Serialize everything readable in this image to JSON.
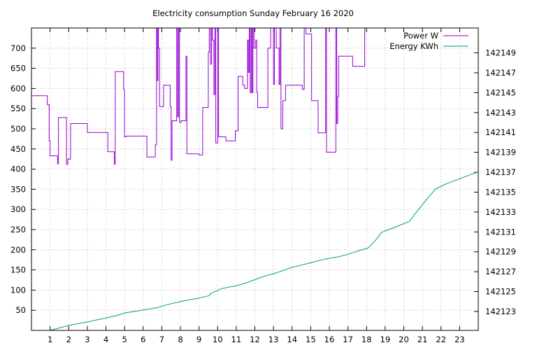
{
  "chart_data": {
    "type": "line",
    "title": "Electricity consumption Sunday February 16 2020",
    "x": {
      "range": [
        0,
        24
      ],
      "ticks": [
        1,
        2,
        3,
        4,
        5,
        6,
        7,
        8,
        9,
        10,
        11,
        12,
        13,
        14,
        15,
        16,
        17,
        18,
        19,
        20,
        21,
        22,
        23
      ],
      "tick_labels": [
        "1",
        "2",
        "3",
        "4",
        "5",
        "6",
        "7",
        "8",
        "9",
        "10",
        "11",
        "12",
        "13",
        "14",
        "15",
        "16",
        "17",
        "18",
        "19",
        "20",
        "21",
        "22",
        "23"
      ]
    },
    "y_left": {
      "range": [
        0,
        750
      ],
      "ticks": [
        50,
        100,
        150,
        200,
        250,
        300,
        350,
        400,
        450,
        500,
        550,
        600,
        650,
        700
      ],
      "tick_labels": [
        "50",
        "100",
        "150",
        "200",
        "250",
        "300",
        "350",
        "400",
        "450",
        "500",
        "550",
        "600",
        "650",
        "700"
      ]
    },
    "y_right": {
      "range": [
        142121.1,
        142151.5
      ],
      "ticks": [
        142123,
        142125,
        142127,
        142129,
        142131,
        142133,
        142135,
        142137,
        142139,
        142141,
        142143,
        142145,
        142147,
        142149
      ],
      "tick_labels": [
        "142123",
        "142125",
        "142127",
        "142129",
        "142131",
        "142133",
        "142135",
        "142137",
        "142139",
        "142141",
        "142143",
        "142145",
        "142147",
        "142149"
      ]
    },
    "grid": true,
    "legend_position": "top-right",
    "series": [
      {
        "name": "Power W",
        "axis": "left",
        "color": "#9400d3",
        "step": true,
        "points": [
          [
            0,
            582
          ],
          [
            0.85,
            582
          ],
          [
            0.85,
            560
          ],
          [
            0.95,
            560
          ],
          [
            0.95,
            470
          ],
          [
            1.0,
            470
          ],
          [
            1.0,
            433
          ],
          [
            1.4,
            433
          ],
          [
            1.4,
            413
          ],
          [
            1.45,
            413
          ],
          [
            1.45,
            528
          ],
          [
            1.88,
            528
          ],
          [
            1.88,
            412
          ],
          [
            1.95,
            412
          ],
          [
            1.95,
            425
          ],
          [
            2.1,
            425
          ],
          [
            2.1,
            513
          ],
          [
            3.0,
            513
          ],
          [
            3.0,
            491
          ],
          [
            4.1,
            491
          ],
          [
            4.1,
            443
          ],
          [
            4.45,
            443
          ],
          [
            4.45,
            412
          ],
          [
            4.5,
            412
          ],
          [
            4.5,
            642
          ],
          [
            4.95,
            642
          ],
          [
            4.95,
            598
          ],
          [
            5.0,
            598
          ],
          [
            5.0,
            480
          ],
          [
            5.1,
            480
          ],
          [
            5.1,
            482
          ],
          [
            6.2,
            482
          ],
          [
            6.2,
            430
          ],
          [
            6.65,
            430
          ],
          [
            6.65,
            460
          ],
          [
            6.72,
            460
          ],
          [
            6.72,
            750
          ],
          [
            6.75,
            750
          ],
          [
            6.75,
            620
          ],
          [
            6.8,
            620
          ],
          [
            6.8,
            750
          ],
          [
            6.82,
            750
          ],
          [
            6.82,
            700
          ],
          [
            6.88,
            700
          ],
          [
            6.88,
            555
          ],
          [
            7.1,
            555
          ],
          [
            7.1,
            608
          ],
          [
            7.45,
            608
          ],
          [
            7.45,
            555
          ],
          [
            7.5,
            555
          ],
          [
            7.5,
            422
          ],
          [
            7.55,
            422
          ],
          [
            7.55,
            520
          ],
          [
            7.8,
            520
          ],
          [
            7.8,
            750
          ],
          [
            7.85,
            750
          ],
          [
            7.85,
            530
          ],
          [
            7.9,
            530
          ],
          [
            7.9,
            750
          ],
          [
            7.95,
            750
          ],
          [
            7.95,
            516
          ],
          [
            8.05,
            516
          ],
          [
            8.05,
            520
          ],
          [
            8.3,
            520
          ],
          [
            8.3,
            680
          ],
          [
            8.35,
            680
          ],
          [
            8.35,
            438
          ],
          [
            9.0,
            438
          ],
          [
            9.0,
            435
          ],
          [
            9.2,
            435
          ],
          [
            9.2,
            553
          ],
          [
            9.5,
            553
          ],
          [
            9.5,
            690
          ],
          [
            9.55,
            690
          ],
          [
            9.55,
            750
          ],
          [
            9.62,
            750
          ],
          [
            9.62,
            660
          ],
          [
            9.68,
            660
          ],
          [
            9.68,
            750
          ],
          [
            9.72,
            750
          ],
          [
            9.72,
            720
          ],
          [
            9.8,
            720
          ],
          [
            9.8,
            585
          ],
          [
            9.85,
            585
          ],
          [
            9.85,
            750
          ],
          [
            9.9,
            750
          ],
          [
            9.9,
            465
          ],
          [
            10.0,
            465
          ],
          [
            10.0,
            750
          ],
          [
            10.05,
            750
          ],
          [
            10.05,
            480
          ],
          [
            10.45,
            480
          ],
          [
            10.45,
            470
          ],
          [
            10.95,
            470
          ],
          [
            10.95,
            495
          ],
          [
            11.1,
            495
          ],
          [
            11.1,
            630
          ],
          [
            11.35,
            630
          ],
          [
            11.35,
            608
          ],
          [
            11.45,
            608
          ],
          [
            11.45,
            600
          ],
          [
            11.6,
            600
          ],
          [
            11.6,
            720
          ],
          [
            11.65,
            720
          ],
          [
            11.65,
            640
          ],
          [
            11.7,
            640
          ],
          [
            11.7,
            750
          ],
          [
            11.75,
            750
          ],
          [
            11.75,
            590
          ],
          [
            11.8,
            590
          ],
          [
            11.8,
            750
          ],
          [
            11.85,
            750
          ],
          [
            11.85,
            590
          ],
          [
            11.9,
            590
          ],
          [
            11.9,
            750
          ],
          [
            11.95,
            750
          ],
          [
            11.95,
            700
          ],
          [
            12.05,
            700
          ],
          [
            12.05,
            720
          ],
          [
            12.1,
            720
          ],
          [
            12.1,
            590
          ],
          [
            12.15,
            590
          ],
          [
            12.15,
            553
          ],
          [
            12.7,
            553
          ],
          [
            12.7,
            700
          ],
          [
            12.85,
            700
          ],
          [
            12.85,
            750
          ],
          [
            13.0,
            750
          ],
          [
            13.0,
            610
          ],
          [
            13.05,
            610
          ],
          [
            13.05,
            750
          ],
          [
            13.15,
            750
          ],
          [
            13.15,
            700
          ],
          [
            13.3,
            700
          ],
          [
            13.3,
            610
          ],
          [
            13.35,
            610
          ],
          [
            13.35,
            750
          ],
          [
            13.4,
            750
          ],
          [
            13.4,
            500
          ],
          [
            13.5,
            500
          ],
          [
            13.5,
            570
          ],
          [
            13.65,
            570
          ],
          [
            13.65,
            608
          ],
          [
            14.55,
            608
          ],
          [
            14.55,
            598
          ],
          [
            14.65,
            598
          ],
          [
            14.65,
            750
          ],
          [
            14.75,
            750
          ],
          [
            14.75,
            735
          ],
          [
            14.8,
            735
          ],
          [
            14.8,
            735
          ],
          [
            15.05,
            735
          ],
          [
            15.05,
            570
          ],
          [
            15.4,
            570
          ],
          [
            15.4,
            490
          ],
          [
            15.8,
            490
          ],
          [
            15.8,
            750
          ],
          [
            15.85,
            750
          ],
          [
            15.85,
            442
          ],
          [
            16.35,
            442
          ],
          [
            16.35,
            750
          ],
          [
            16.4,
            750
          ],
          [
            16.4,
            513
          ],
          [
            16.45,
            513
          ],
          [
            16.45,
            580
          ],
          [
            16.5,
            580
          ],
          [
            16.5,
            680
          ],
          [
            17.25,
            680
          ],
          [
            17.25,
            655
          ],
          [
            17.9,
            655
          ],
          [
            17.9,
            750
          ],
          [
            17.95,
            750
          ]
        ]
      },
      {
        "name": "Energy KWh",
        "axis": "right",
        "color": "#009e73",
        "step": false,
        "points": [
          [
            1.0,
            142121.1
          ],
          [
            2.0,
            142121.6
          ],
          [
            3.0,
            142121.95
          ],
          [
            4.0,
            142122.35
          ],
          [
            4.5,
            142122.55
          ],
          [
            5.0,
            142122.85
          ],
          [
            6.0,
            142123.15
          ],
          [
            6.8,
            142123.4
          ],
          [
            7.2,
            142123.65
          ],
          [
            8.0,
            142124.0
          ],
          [
            9.0,
            142124.35
          ],
          [
            9.55,
            142124.6
          ],
          [
            9.65,
            142124.85
          ],
          [
            10.0,
            142125.1
          ],
          [
            10.2,
            142125.3
          ],
          [
            11.0,
            142125.6
          ],
          [
            11.5,
            142125.85
          ],
          [
            12.0,
            142126.2
          ],
          [
            12.5,
            142126.55
          ],
          [
            13.0,
            142126.8
          ],
          [
            13.5,
            142127.1
          ],
          [
            14.0,
            142127.45
          ],
          [
            15.0,
            142127.9
          ],
          [
            15.5,
            142128.15
          ],
          [
            16.0,
            142128.35
          ],
          [
            16.5,
            142128.5
          ],
          [
            17.0,
            142128.75
          ],
          [
            17.5,
            142129.05
          ],
          [
            18.1,
            142129.4
          ],
          [
            18.5,
            142130.2
          ],
          [
            18.8,
            142130.95
          ],
          [
            19.5,
            142131.45
          ],
          [
            20.3,
            142132.05
          ],
          [
            20.6,
            142132.8
          ],
          [
            21.2,
            142134.2
          ],
          [
            21.7,
            142135.3
          ],
          [
            22.3,
            142135.85
          ],
          [
            23.0,
            142136.35
          ],
          [
            24.0,
            142137.05
          ]
        ]
      }
    ]
  }
}
